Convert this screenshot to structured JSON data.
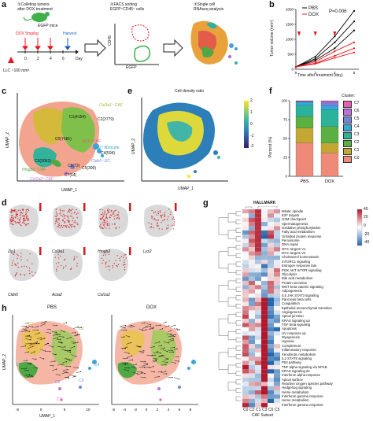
{
  "panels": {
    "a": {
      "label": "a",
      "step1": "①Colleting tumors\nafter DOX treatment",
      "step2": "②FACS sorting\nEGFP⁺CD45⁺ cells",
      "step3": "③Single cell\nRNAseq analysis",
      "dose": "DOX 5mg/kg",
      "mice": "EGFP mice",
      "harvest": "Harvest",
      "llc": "LLC ~100 mm³",
      "day_label": "Day",
      "days": [
        "0",
        "2",
        "4",
        "6"
      ],
      "facs_x": "EGFP",
      "facs_y": "CD45"
    },
    "b": {
      "label": "b",
      "legend": [
        "PBS",
        "DOX"
      ],
      "pvalue": "P=0.006",
      "ylabel": "Tumor volume (mm³)",
      "xlabel": "Time after treatment (day)",
      "yticks": [
        "0",
        "500",
        "1000",
        "1500",
        "2000"
      ],
      "xticks": [
        "0",
        "2",
        "4",
        "6"
      ]
    },
    "c": {
      "label": "c",
      "xlabel": "UMAP_1",
      "ylabel": "UMAP_2",
      "xticks": [
        "-5",
        "0",
        "5",
        "10"
      ],
      "yticks": [
        "-5",
        "0",
        "5"
      ],
      "clusters": [
        "C1(4154)",
        "C2(3779)",
        "C0(7681)",
        "C3(3062)",
        "C4(594)",
        "C5(390)",
        "C6(73)",
        "C7(64)"
      ],
      "annot": [
        "Col3a1⁺ CAF",
        "Zip1⁺ CAF",
        "Lyz2⁺ fibrocyte",
        "Hmgb2⁺ CAF",
        "Cldn5⁺ EC",
        "Col1a2⁺ CAF"
      ]
    },
    "e": {
      "label": "e",
      "title": "Cell density ratio",
      "xlabel": "UMAP_1",
      "ylabel": "UMAP_2",
      "scale": [
        "2",
        "1",
        "0",
        "-1",
        "-2"
      ]
    },
    "f": {
      "label": "f",
      "ylabel": "Percent (%)",
      "yticks": [
        "0",
        "25",
        "50",
        "75",
        "100"
      ],
      "categories": [
        "PBS",
        "DOX"
      ],
      "legend_title": "Cluster:",
      "legend": [
        "C7",
        "C6",
        "C5",
        "C4",
        "C3",
        "C2",
        "C1",
        "C0"
      ]
    },
    "d": {
      "label": "d",
      "genes": [
        "Zip1",
        "Col3a1",
        "Hmgb2",
        "Lyz2",
        "Cldn5",
        "Acta2",
        "Col1a2"
      ]
    },
    "g": {
      "label": "g",
      "title": "HALLMARK",
      "scale": [
        "40",
        "20",
        "0",
        "-20",
        "-40"
      ],
      "cols": [
        "C0",
        "C2",
        "C1",
        "C3",
        "C6",
        "C5"
      ],
      "xlabel": "CAF Subset",
      "rows": [
        "Mitotic spindle",
        "E2F targets",
        "G2M checkpoint",
        "Spermatogenesis",
        "Oxidative phosphorylation",
        "Fatty acid metabolism",
        "Unfolded protein response",
        "Peroxisome",
        "DNA repair",
        "MYC targets V1",
        "MYC targets V2",
        "Cholesterol homeostasis",
        "mTORC1 signaling",
        "Estrogen response late",
        "PI3K AKT mTOR signaling",
        "Glycolysis",
        "Bile acid metabolism",
        "Protein secretion",
        "WNT beta-catenin signaling",
        "Adipogenesis",
        "IL6 JAK STAT3 signaling",
        "Pancreas beta cells",
        "Coagulation",
        "Epithelial mesenchymal transition",
        "Angiogenesis",
        "Apical junction",
        "KRAS signaling up",
        "TGF beta signaling",
        "Apoptosis",
        "UV response up",
        "Myogenesis",
        "Hypoxia",
        "Complement",
        "Inflammatory response",
        "Xenobiotic metabolism",
        "IL2 STAT5 signaling",
        "P53 pathway",
        "TNF alpha signaling via NFKB",
        "KRAS signaling dn",
        "Interferon alpha response",
        "Apical surface",
        "Reactive oxygen species pathway",
        "Hedgehog signaling",
        "Heme metabolism",
        "Interferon gamma response",
        "Heme metabolism",
        "Interferon gamma response"
      ]
    },
    "h": {
      "label": "h",
      "pbs_title": "PBS",
      "dox_title": "DOX",
      "xlabel": "UMAP_1",
      "ylabel": "UMAP_2",
      "clusters": [
        "C1",
        "C0",
        "C2",
        "C3",
        "C4",
        "C5",
        "C6",
        "C7"
      ],
      "xticks_pbs": [
        "-5",
        "0",
        "5",
        "10"
      ],
      "xticks_dox": [
        "-6",
        "-4",
        "-2",
        "0",
        "2",
        "4",
        "6",
        "8"
      ]
    }
  },
  "chart_data": [
    {
      "type": "line",
      "xlabel": "Time after treatment (day)",
      "ylabel": "Tumor volume (mm³)",
      "x": [
        0,
        2,
        4,
        6
      ],
      "ylim": [
        0,
        2000
      ],
      "series": [
        {
          "name": "PBS",
          "color": "#000000",
          "values": [
            [
              80,
              420,
              1100,
              1950
            ],
            [
              80,
              350,
              900,
              1600
            ],
            [
              80,
              300,
              700,
              1300
            ]
          ]
        },
        {
          "name": "DOX",
          "color": "#e8161e",
          "values": [
            [
              80,
              250,
              600,
              900
            ],
            [
              80,
              200,
              450,
              700
            ],
            [
              80,
              180,
              380,
              560
            ]
          ]
        }
      ]
    },
    {
      "type": "bar",
      "categories": [
        "PBS",
        "DOX"
      ],
      "ylim": [
        0,
        100
      ],
      "series": [
        {
          "name": "C0",
          "color": "#f08a78",
          "values": [
            44,
            31
          ]
        },
        {
          "name": "C1",
          "color": "#c2a832",
          "values": [
            20,
            13
          ]
        },
        {
          "name": "C2",
          "color": "#5ab041",
          "values": [
            15,
            22
          ]
        },
        {
          "name": "C3",
          "color": "#2ab39a",
          "values": [
            15,
            22
          ]
        },
        {
          "name": "C4",
          "color": "#33a9d9",
          "values": [
            4,
            5
          ]
        },
        {
          "name": "C5",
          "color": "#6f86e0",
          "values": [
            1,
            4
          ]
        },
        {
          "name": "C6",
          "color": "#bb6fe0",
          "values": [
            0.5,
            2
          ]
        },
        {
          "name": "C7",
          "color": "#e85fb0",
          "values": [
            0.5,
            1
          ]
        }
      ]
    }
  ]
}
